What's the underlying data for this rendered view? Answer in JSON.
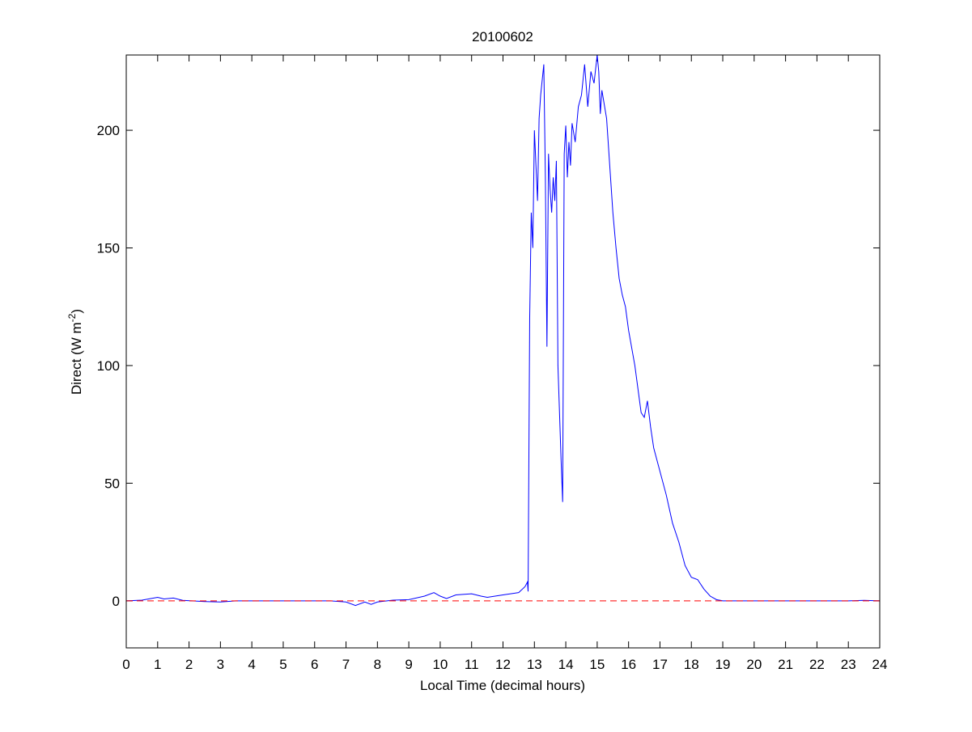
{
  "chart_data": {
    "type": "line",
    "title": "20100602",
    "xlabel": "Local Time (decimal hours)",
    "ylabel": [
      "Direct (W m",
      "-2",
      ")"
    ],
    "x": [
      0,
      0.5,
      1,
      1.2,
      1.5,
      1.8,
      2.5,
      3,
      3.5,
      4,
      5,
      6,
      6.5,
      7,
      7.3,
      7.6,
      7.8,
      8,
      8.5,
      9,
      9.5,
      9.8,
      10,
      10.2,
      10.5,
      11,
      11.3,
      11.5,
      12,
      12.5,
      12.7,
      12.78,
      12.8,
      12.85,
      12.9,
      12.95,
      13,
      13.05,
      13.1,
      13.15,
      13.2,
      13.3,
      13.35,
      13.4,
      13.45,
      13.5,
      13.55,
      13.6,
      13.65,
      13.7,
      13.75,
      13.8,
      13.85,
      13.9,
      13.95,
      14,
      14.05,
      14.1,
      14.15,
      14.2,
      14.3,
      14.4,
      14.5,
      14.6,
      14.7,
      14.8,
      14.9,
      15,
      15.05,
      15.1,
      15.15,
      15.3,
      15.4,
      15.5,
      15.6,
      15.7,
      15.8,
      15.9,
      16,
      16.2,
      16.4,
      16.5,
      16.6,
      16.7,
      16.8,
      17,
      17.2,
      17.4,
      17.6,
      17.8,
      18,
      18.2,
      18.4,
      18.6,
      18.8,
      19,
      20,
      21,
      22,
      23,
      23.5,
      24
    ],
    "series": [
      {
        "color": "#0000ff",
        "values": [
          0,
          0.3,
          1.5,
          0.8,
          1.2,
          0.2,
          -0.3,
          -0.5,
          0,
          0,
          0,
          0,
          0,
          -0.5,
          -2,
          -0.5,
          -1.5,
          -0.5,
          0.3,
          0.5,
          2,
          3.5,
          2,
          1,
          2.5,
          3,
          2,
          1.5,
          2.5,
          3.5,
          6,
          8,
          4,
          120,
          165,
          150,
          200,
          185,
          170,
          205,
          215,
          228,
          180,
          108,
          190,
          175,
          165,
          180,
          170,
          187,
          100,
          80,
          60,
          42,
          190,
          202,
          180,
          195,
          185,
          203,
          195,
          210,
          215,
          228,
          210,
          225,
          220,
          232,
          225,
          207,
          217,
          205,
          185,
          165,
          150,
          137,
          130,
          125,
          115,
          100,
          80,
          78,
          85,
          74,
          65,
          55,
          45,
          33,
          25,
          15,
          10,
          9,
          5,
          2,
          0.5,
          0,
          0,
          0,
          0,
          0,
          0.2,
          0
        ]
      }
    ],
    "hline": {
      "value": 0,
      "color": "#ff0000"
    },
    "xlim": [
      0,
      24
    ],
    "ylim": [
      -20,
      232
    ],
    "xticks": [
      0,
      1,
      2,
      3,
      4,
      5,
      6,
      7,
      8,
      9,
      10,
      11,
      12,
      13,
      14,
      15,
      16,
      17,
      18,
      19,
      20,
      21,
      22,
      23,
      24
    ],
    "yticks": [
      0,
      50,
      100,
      150,
      200
    ]
  }
}
